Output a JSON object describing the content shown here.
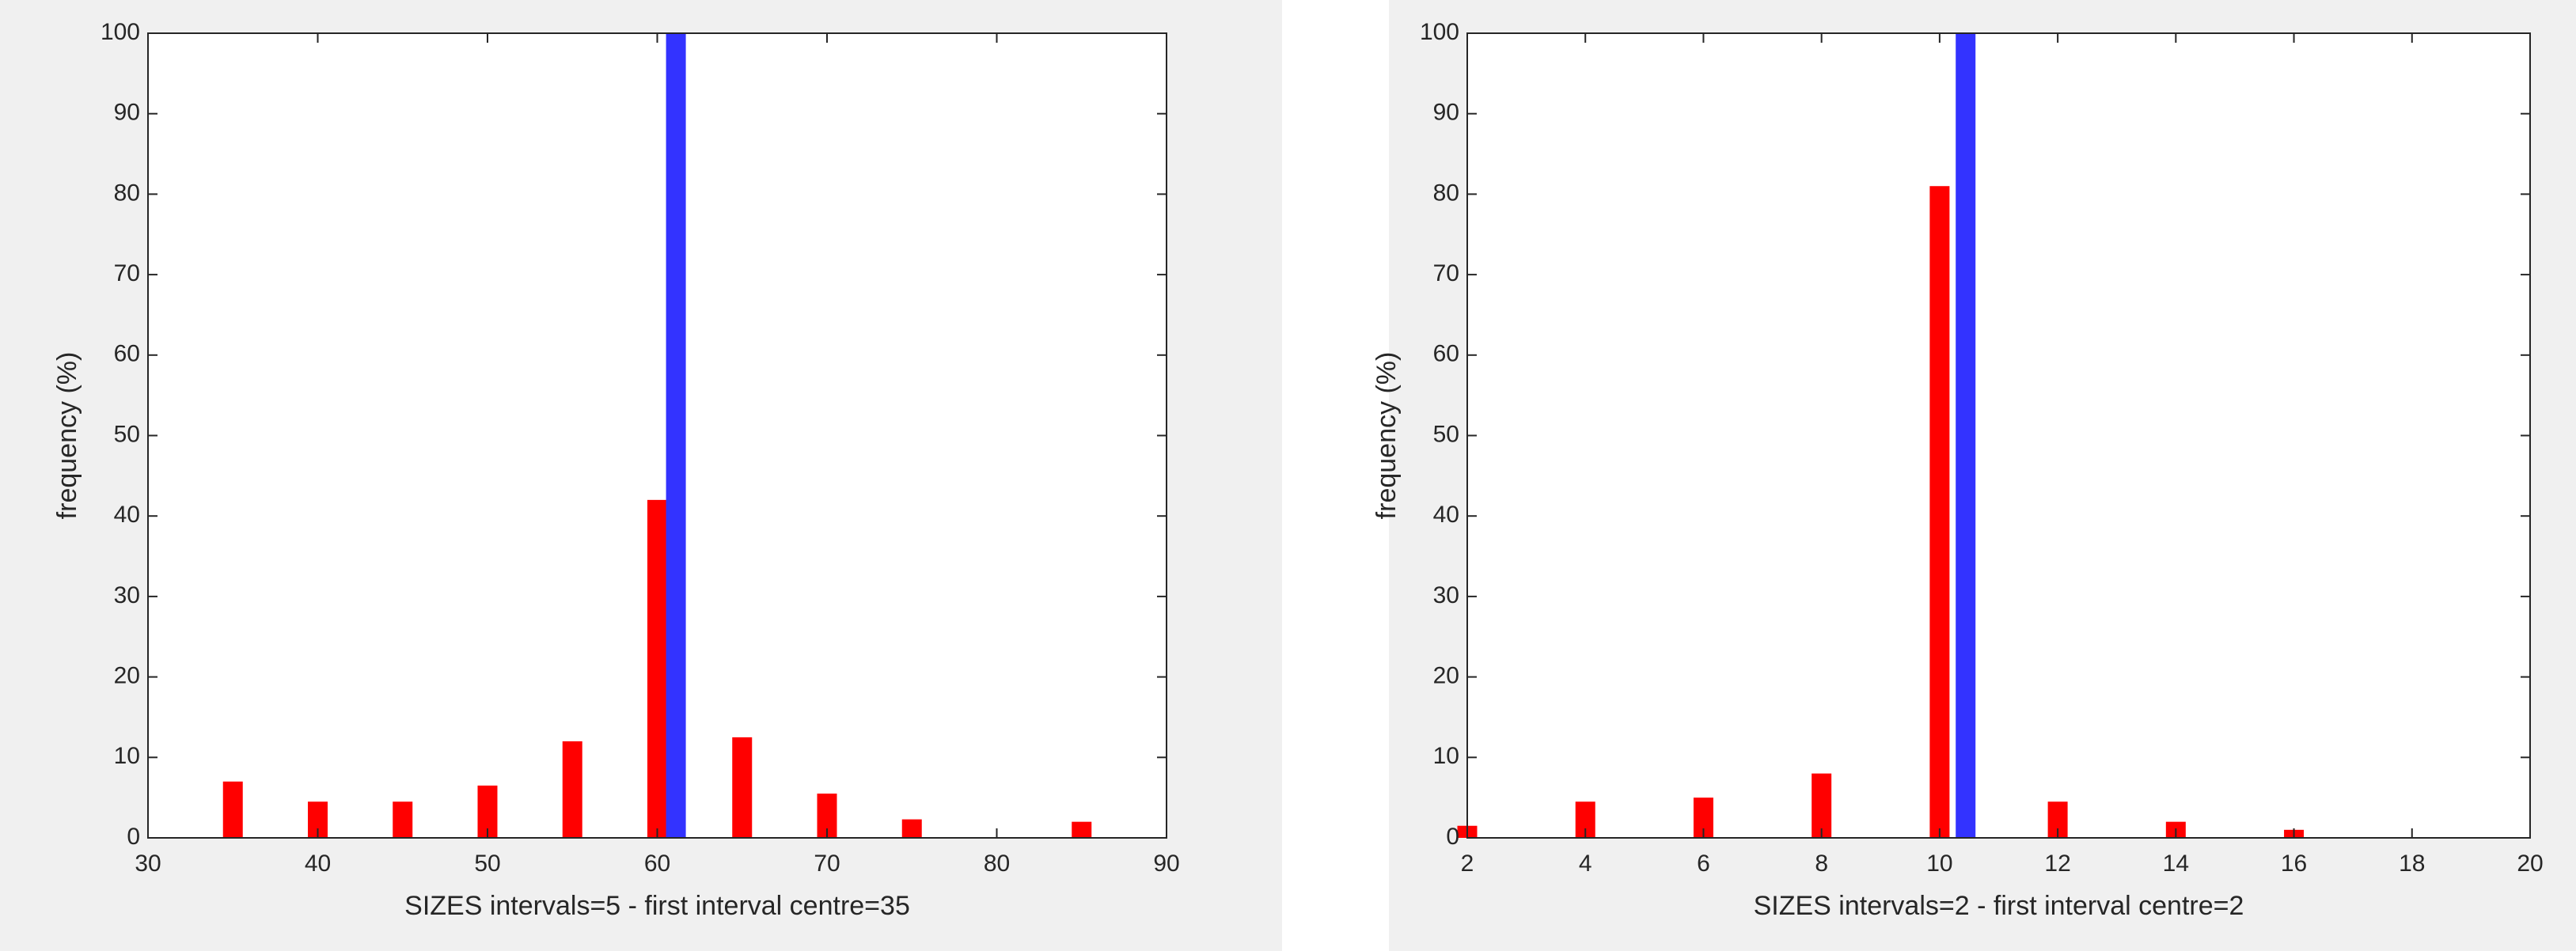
{
  "chart_data": [
    {
      "type": "bar",
      "xlabel": "SIZES intervals=5 - first interval centre=35",
      "ylabel": "frequency (%)",
      "xlim": [
        30,
        90
      ],
      "xticks": [
        30,
        40,
        50,
        60,
        70,
        80,
        90
      ],
      "ylim": [
        0,
        100
      ],
      "yticks": [
        0,
        10,
        20,
        30,
        40,
        50,
        60,
        70,
        80,
        90,
        100
      ],
      "series": [
        {
          "color": "#ff0000",
          "x": [
            35,
            40,
            45,
            50,
            55,
            60,
            65,
            70,
            75,
            85
          ],
          "values": [
            7,
            4.5,
            4.5,
            6.5,
            12,
            42,
            12.5,
            5.5,
            2.3,
            2
          ]
        },
        {
          "color": "#3333ff",
          "x": [
            61.1
          ],
          "values": [
            100
          ]
        }
      ]
    },
    {
      "type": "bar",
      "xlabel": "SIZES intervals=2 - first interval centre=2",
      "ylabel": "frequency (%)",
      "xlim": [
        2,
        20
      ],
      "xticks": [
        2,
        4,
        6,
        8,
        10,
        12,
        14,
        16,
        18,
        20
      ],
      "ylim": [
        0,
        100
      ],
      "yticks": [
        0,
        10,
        20,
        30,
        40,
        50,
        60,
        70,
        80,
        90,
        100
      ],
      "series": [
        {
          "color": "#ff0000",
          "x": [
            2,
            4,
            6,
            8,
            10,
            12,
            14,
            16
          ],
          "values": [
            1.5,
            4.5,
            5,
            8,
            81,
            4.5,
            2,
            1
          ]
        },
        {
          "color": "#3333ff",
          "x": [
            10.44
          ],
          "values": [
            100
          ]
        }
      ]
    }
  ]
}
